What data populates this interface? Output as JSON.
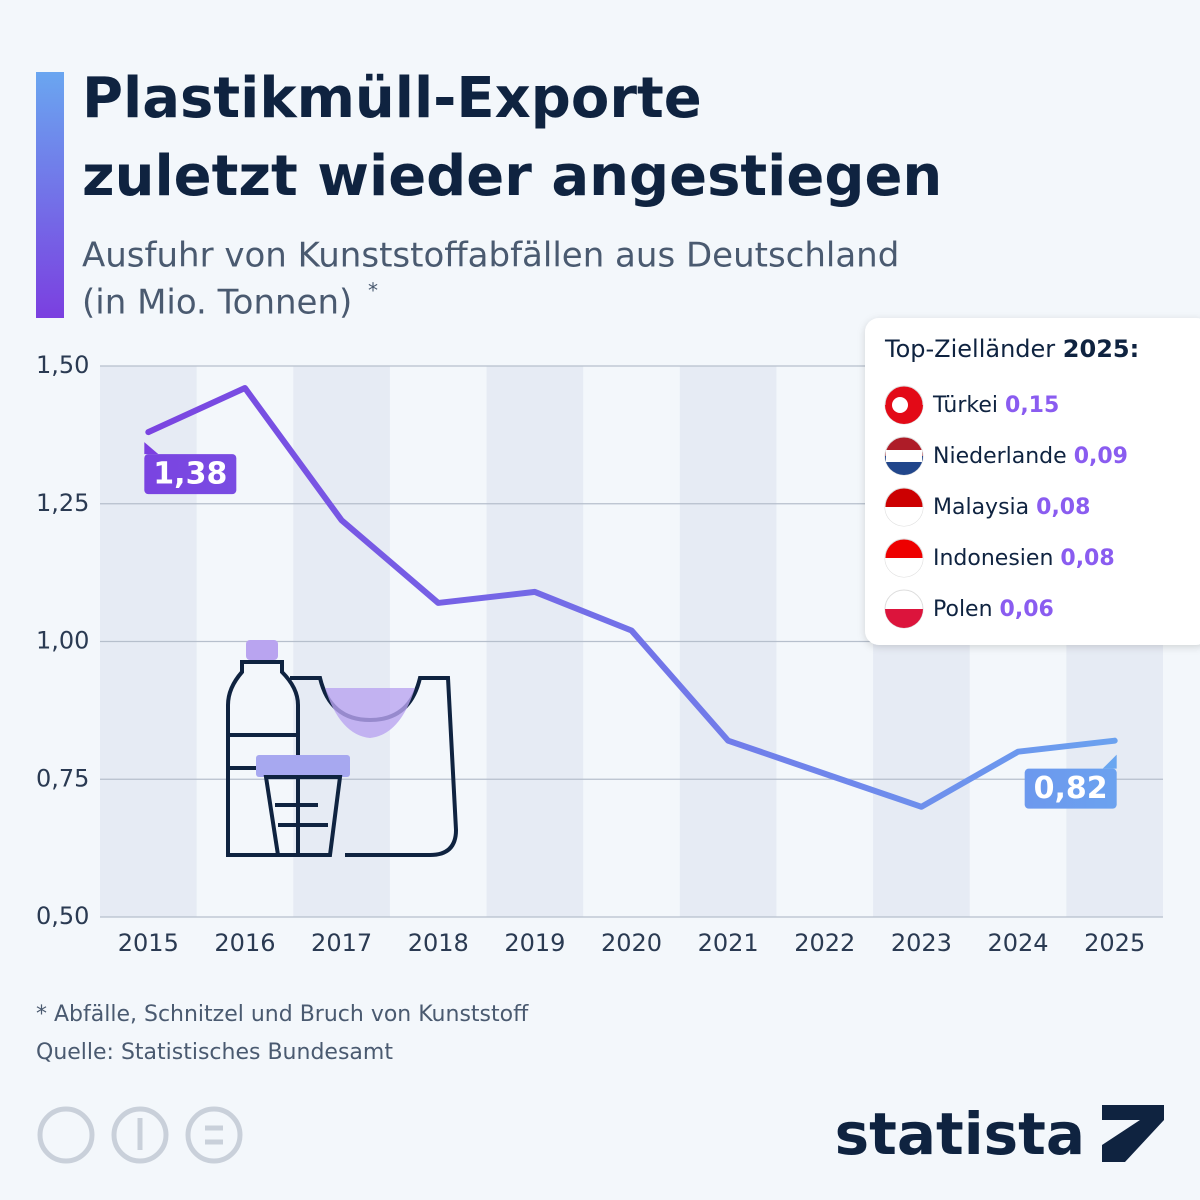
{
  "chart_data": {
    "type": "line",
    "title": [
      "Plastikmüll-Exporte",
      "zuletzt wieder angestiegen"
    ],
    "subtitle": [
      "Ausfuhr von Kunststoffabfällen aus Deutschland",
      "(in Mio. Tonnen)"
    ],
    "subtitle_mark": "*",
    "categories": [
      "2015",
      "2016",
      "2017",
      "2018",
      "2019",
      "2020",
      "2021",
      "2022",
      "2023",
      "2024",
      "2025"
    ],
    "values": [
      1.38,
      1.46,
      1.22,
      1.07,
      1.09,
      1.02,
      0.82,
      0.76,
      0.7,
      0.8,
      0.82
    ],
    "value_labels": [
      "1,38",
      null,
      null,
      null,
      null,
      null,
      null,
      null,
      null,
      null,
      "0,82"
    ],
    "colors": [
      "#7b3fe0",
      "#6aa6f0"
    ],
    "ylim": [
      0.5,
      1.5
    ],
    "yticks": [
      {
        "value": 0.5,
        "label": "0,50"
      },
      {
        "value": 0.75,
        "label": "0,75"
      },
      {
        "value": 1.0,
        "label": "1,00"
      },
      {
        "value": 1.25,
        "label": "1,25"
      },
      {
        "value": 1.5,
        "label": "1,50"
      }
    ],
    "grid": true,
    "inset": {
      "title": "Top-Zielländer",
      "title_year": "2025:",
      "items": [
        {
          "name": "Türkei",
          "value": "0,15"
        },
        {
          "name": "Niederlande",
          "value": "0,09"
        },
        {
          "name": "Malaysia",
          "value": "0,08"
        },
        {
          "name": "Indonesien",
          "value": "0,08"
        },
        {
          "name": "Polen",
          "value": "0,06"
        }
      ]
    },
    "footnote": "* Abfälle, Schnitzel und Bruch von Kunststoff",
    "source": "Quelle: Statistisches Bundesamt",
    "brand": "statista"
  }
}
